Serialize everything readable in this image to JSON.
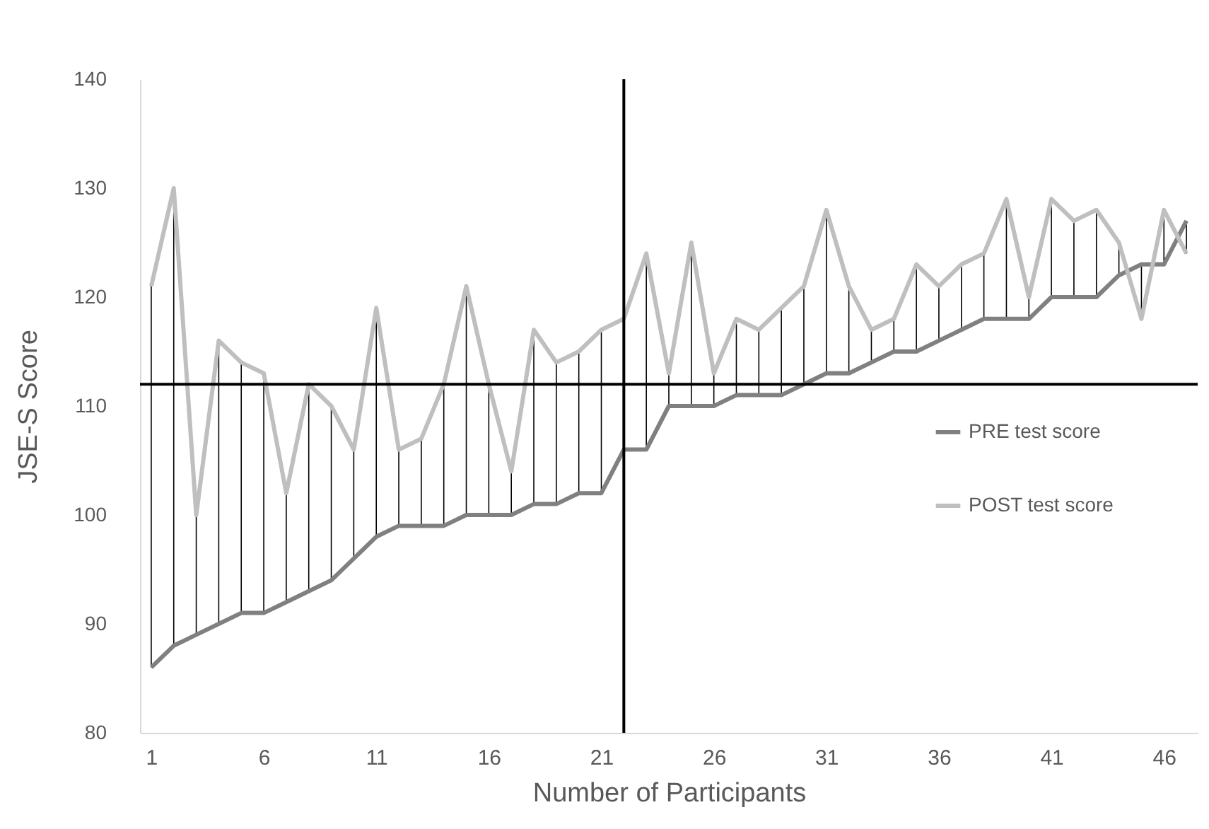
{
  "chart_data": {
    "type": "line",
    "xlabel": "Number of Participants",
    "ylabel": "JSE-S Score",
    "x": [
      1,
      2,
      3,
      4,
      5,
      6,
      7,
      8,
      9,
      10,
      11,
      12,
      13,
      14,
      15,
      16,
      17,
      18,
      19,
      20,
      21,
      22,
      23,
      24,
      25,
      26,
      27,
      28,
      29,
      30,
      31,
      32,
      33,
      34,
      35,
      36,
      37,
      38,
      39,
      40,
      41,
      42,
      43,
      44,
      45,
      46,
      47
    ],
    "series": [
      {
        "name": "PRE test score",
        "color": "#808080",
        "values": [
          86,
          88,
          89,
          90,
          91,
          91,
          92,
          93,
          94,
          96,
          98,
          99,
          99,
          99,
          100,
          100,
          100,
          101,
          101,
          102,
          102,
          106,
          106,
          110,
          110,
          110,
          111,
          111,
          111,
          112,
          113,
          113,
          114,
          115,
          115,
          116,
          117,
          118,
          118,
          118,
          120,
          120,
          120,
          122,
          123,
          123,
          127
        ]
      },
      {
        "name": "POST test score",
        "color": "#bfbfbf",
        "values": [
          121,
          130,
          100,
          116,
          114,
          113,
          102,
          112,
          110,
          106,
          119,
          106,
          107,
          112,
          121,
          112,
          104,
          117,
          114,
          115,
          117,
          118,
          124,
          113,
          125,
          113,
          118,
          117,
          119,
          121,
          128,
          121,
          117,
          118,
          123,
          121,
          123,
          124,
          129,
          120,
          129,
          127,
          128,
          125,
          118,
          128,
          124
        ],
        "errors": [
          [
            86,
            121
          ],
          [
            88,
            130
          ],
          [
            89,
            100
          ],
          [
            90,
            116
          ],
          [
            91,
            114
          ],
          [
            91,
            113
          ],
          [
            92,
            102
          ],
          [
            93,
            112
          ],
          [
            94,
            110
          ],
          [
            96,
            106
          ],
          [
            98,
            119
          ],
          [
            99,
            106
          ],
          [
            99,
            107
          ],
          [
            99,
            112
          ],
          [
            100,
            121
          ],
          [
            100,
            112
          ],
          [
            100,
            104
          ],
          [
            101,
            117
          ],
          [
            101,
            114
          ],
          [
            102,
            115
          ],
          [
            102,
            117
          ],
          [
            106,
            118
          ],
          [
            106,
            124
          ],
          [
            110,
            113
          ],
          [
            110,
            125
          ],
          [
            110,
            113
          ],
          [
            111,
            118
          ],
          [
            111,
            117
          ],
          [
            111,
            119
          ],
          [
            112,
            121
          ],
          [
            113,
            128
          ],
          [
            113,
            121
          ],
          [
            114,
            117
          ],
          [
            115,
            118
          ],
          [
            115,
            123
          ],
          [
            116,
            121
          ],
          [
            117,
            123
          ],
          [
            118,
            124
          ],
          [
            118,
            129
          ],
          [
            118,
            120
          ],
          [
            120,
            129
          ],
          [
            120,
            127
          ],
          [
            120,
            128
          ],
          [
            122,
            125
          ],
          [
            118,
            123
          ],
          [
            123,
            128
          ],
          [
            124,
            127
          ]
        ]
      }
    ],
    "xlim": [
      0.5,
      47.5
    ],
    "xticks": [
      1,
      6,
      11,
      16,
      21,
      26,
      31,
      36,
      41,
      46
    ],
    "ylim": [
      80,
      140
    ],
    "yticks": [
      80,
      90,
      100,
      110,
      120,
      130,
      140
    ],
    "ref_lines": [
      {
        "axis": "x",
        "value": 22,
        "color": "#000000"
      },
      {
        "axis": "y",
        "value": 112,
        "color": "#000000"
      }
    ],
    "grid": false,
    "legend": "right",
    "marker": "none",
    "line_style": "solid"
  }
}
